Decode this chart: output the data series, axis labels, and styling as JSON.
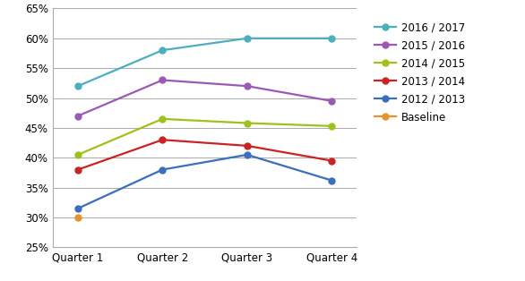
{
  "x_labels": [
    "Quarter 1",
    "Quarter 2",
    "Quarter 3",
    "Quarter 4"
  ],
  "series": [
    {
      "label": "2016 / 2017",
      "color": "#4BAFC0",
      "values": [
        0.52,
        0.58,
        0.6,
        0.6
      ]
    },
    {
      "label": "2015 / 2016",
      "color": "#9B59B6",
      "values": [
        0.47,
        0.53,
        0.52,
        0.495
      ]
    },
    {
      "label": "2014 / 2015",
      "color": "#9DC31A",
      "values": [
        0.405,
        0.465,
        0.458,
        0.453
      ]
    },
    {
      "label": "2013 / 2014",
      "color": "#CC2222",
      "values": [
        0.38,
        0.43,
        0.42,
        0.395
      ]
    },
    {
      "label": "2012 / 2013",
      "color": "#3A6EBF",
      "values": [
        0.315,
        0.38,
        0.405,
        0.362
      ]
    },
    {
      "label": "Baseline",
      "color": "#E8922A",
      "values": [
        0.3,
        null,
        null,
        null
      ]
    }
  ],
  "ylim": [
    0.25,
    0.65
  ],
  "yticks": [
    0.25,
    0.3,
    0.35,
    0.4,
    0.45,
    0.5,
    0.55,
    0.6,
    0.65
  ],
  "grid_color": "#AAAAAA",
  "background_color": "#FFFFFF",
  "marker": "o",
  "marker_size": 5,
  "line_width": 1.6
}
